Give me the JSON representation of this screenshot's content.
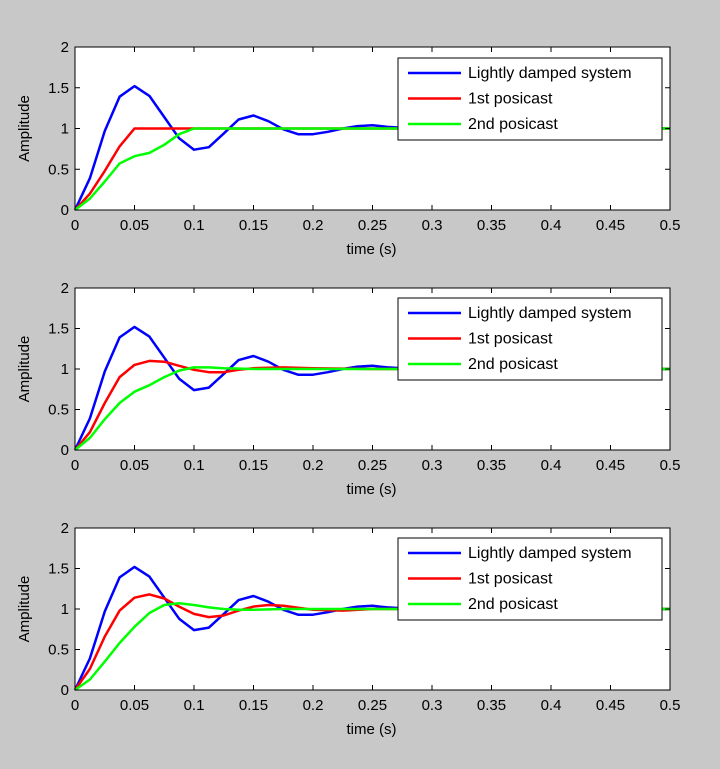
{
  "chart_data": [
    {
      "type": "line",
      "xlabel": "time (s)",
      "ylabel": "Amplitude",
      "xlim": [
        0,
        0.5
      ],
      "ylim": [
        0,
        2
      ],
      "xticks": [
        "0",
        "0.05",
        "0.1",
        "0.15",
        "0.2",
        "0.25",
        "0.3",
        "0.35",
        "0.4",
        "0.45",
        "0.5"
      ],
      "yticks": [
        "0",
        "0.5",
        "1",
        "1.5",
        "2"
      ],
      "grid": false,
      "legend": "top-right",
      "series": [
        {
          "name": "Lightly damped system",
          "color": "#0000ff",
          "x": [
            0,
            0.0125,
            0.025,
            0.0375,
            0.05,
            0.0625,
            0.075,
            0.0875,
            0.1,
            0.1125,
            0.125,
            0.1375,
            0.15,
            0.1625,
            0.175,
            0.1875,
            0.2,
            0.2125,
            0.225,
            0.2375,
            0.25,
            0.2625,
            0.275,
            0.3,
            0.35,
            0.4,
            0.45,
            0.5
          ],
          "y": [
            0,
            0.39,
            0.97,
            1.39,
            1.52,
            1.4,
            1.14,
            0.88,
            0.74,
            0.77,
            0.94,
            1.11,
            1.16,
            1.09,
            0.99,
            0.93,
            0.93,
            0.96,
            1.0,
            1.03,
            1.04,
            1.02,
            1.01,
            1.0,
            1.0,
            1.0,
            1.0,
            1.0
          ]
        },
        {
          "name": "1st posicast",
          "color": "#ff0000",
          "x": [
            0,
            0.0125,
            0.025,
            0.0375,
            0.05,
            0.0625,
            0.075,
            0.1,
            0.15,
            0.2,
            0.3,
            0.4,
            0.5
          ],
          "y": [
            0,
            0.2,
            0.48,
            0.78,
            1.0,
            1.0,
            1.0,
            1.0,
            1.0,
            1.0,
            1.0,
            1.0,
            1.0
          ]
        },
        {
          "name": "2nd posicast",
          "color": "#00ff00",
          "x": [
            0,
            0.0125,
            0.025,
            0.0375,
            0.05,
            0.0625,
            0.075,
            0.0875,
            0.1,
            0.15,
            0.2,
            0.3,
            0.4,
            0.5
          ],
          "y": [
            0,
            0.14,
            0.35,
            0.57,
            0.66,
            0.7,
            0.8,
            0.93,
            1.0,
            1.0,
            1.0,
            1.0,
            1.0,
            1.0
          ]
        }
      ]
    },
    {
      "type": "line",
      "xlabel": "time (s)",
      "ylabel": "Amplitude",
      "xlim": [
        0,
        0.5
      ],
      "ylim": [
        0,
        2
      ],
      "xticks": [
        "0",
        "0.05",
        "0.1",
        "0.15",
        "0.2",
        "0.25",
        "0.3",
        "0.35",
        "0.4",
        "0.45",
        "0.5"
      ],
      "yticks": [
        "0",
        "0.5",
        "1",
        "1.5",
        "2"
      ],
      "grid": false,
      "legend": "top-right",
      "series": [
        {
          "name": "Lightly damped system",
          "color": "#0000ff",
          "x": [
            0,
            0.0125,
            0.025,
            0.0375,
            0.05,
            0.0625,
            0.075,
            0.0875,
            0.1,
            0.1125,
            0.125,
            0.1375,
            0.15,
            0.1625,
            0.175,
            0.1875,
            0.2,
            0.2125,
            0.225,
            0.2375,
            0.25,
            0.2625,
            0.275,
            0.3,
            0.35,
            0.4,
            0.45,
            0.5
          ],
          "y": [
            0,
            0.39,
            0.97,
            1.39,
            1.52,
            1.4,
            1.14,
            0.88,
            0.74,
            0.77,
            0.94,
            1.11,
            1.16,
            1.09,
            0.99,
            0.93,
            0.93,
            0.96,
            1.0,
            1.03,
            1.04,
            1.02,
            1.01,
            1.0,
            1.0,
            1.0,
            1.0,
            1.0
          ]
        },
        {
          "name": "1st posicast",
          "color": "#ff0000",
          "x": [
            0,
            0.0125,
            0.025,
            0.0375,
            0.05,
            0.0625,
            0.075,
            0.0875,
            0.1,
            0.1125,
            0.125,
            0.1375,
            0.15,
            0.175,
            0.2,
            0.25,
            0.3,
            0.4,
            0.5
          ],
          "y": [
            0,
            0.22,
            0.58,
            0.9,
            1.05,
            1.1,
            1.09,
            1.04,
            0.99,
            0.96,
            0.96,
            0.99,
            1.01,
            1.02,
            1.01,
            1.0,
            1.0,
            1.0,
            1.0
          ]
        },
        {
          "name": "2nd posicast",
          "color": "#00ff00",
          "x": [
            0,
            0.0125,
            0.025,
            0.0375,
            0.05,
            0.0625,
            0.075,
            0.0875,
            0.1,
            0.1125,
            0.125,
            0.15,
            0.2,
            0.3,
            0.4,
            0.5
          ],
          "y": [
            0,
            0.15,
            0.38,
            0.58,
            0.72,
            0.8,
            0.9,
            0.98,
            1.02,
            1.02,
            1.01,
            1.0,
            1.0,
            1.0,
            1.0,
            1.0
          ]
        }
      ]
    },
    {
      "type": "line",
      "xlabel": "time (s)",
      "ylabel": "Amplitude",
      "xlim": [
        0,
        0.5
      ],
      "ylim": [
        0,
        2
      ],
      "xticks": [
        "0",
        "0.05",
        "0.1",
        "0.15",
        "0.2",
        "0.25",
        "0.3",
        "0.35",
        "0.4",
        "0.45",
        "0.5"
      ],
      "yticks": [
        "0",
        "0.5",
        "1",
        "1.5",
        "2"
      ],
      "grid": false,
      "legend": "top-right",
      "series": [
        {
          "name": "Lightly damped system",
          "color": "#0000ff",
          "x": [
            0,
            0.0125,
            0.025,
            0.0375,
            0.05,
            0.0625,
            0.075,
            0.0875,
            0.1,
            0.1125,
            0.125,
            0.1375,
            0.15,
            0.1625,
            0.175,
            0.1875,
            0.2,
            0.2125,
            0.225,
            0.2375,
            0.25,
            0.2625,
            0.275,
            0.3,
            0.35,
            0.4,
            0.45,
            0.5
          ],
          "y": [
            0,
            0.39,
            0.97,
            1.39,
            1.52,
            1.4,
            1.14,
            0.88,
            0.74,
            0.77,
            0.94,
            1.11,
            1.16,
            1.09,
            0.99,
            0.93,
            0.93,
            0.96,
            1.0,
            1.03,
            1.04,
            1.02,
            1.01,
            1.0,
            1.0,
            1.0,
            1.0,
            1.0
          ]
        },
        {
          "name": "1st posicast",
          "color": "#ff0000",
          "x": [
            0,
            0.0125,
            0.025,
            0.0375,
            0.05,
            0.0625,
            0.075,
            0.0875,
            0.1,
            0.1125,
            0.125,
            0.1375,
            0.15,
            0.1625,
            0.175,
            0.2,
            0.225,
            0.25,
            0.3,
            0.4,
            0.5
          ],
          "y": [
            0,
            0.26,
            0.66,
            0.98,
            1.14,
            1.18,
            1.13,
            1.03,
            0.94,
            0.9,
            0.92,
            0.98,
            1.03,
            1.05,
            1.04,
            0.99,
            0.98,
            1.0,
            1.0,
            1.0,
            1.0
          ]
        },
        {
          "name": "2nd posicast",
          "color": "#00ff00",
          "x": [
            0,
            0.0125,
            0.025,
            0.0375,
            0.05,
            0.0625,
            0.075,
            0.0875,
            0.1,
            0.1125,
            0.125,
            0.1375,
            0.15,
            0.175,
            0.2,
            0.25,
            0.3,
            0.4,
            0.5
          ],
          "y": [
            0,
            0.13,
            0.35,
            0.58,
            0.78,
            0.95,
            1.05,
            1.07,
            1.05,
            1.02,
            1.0,
            0.99,
            0.99,
            1.0,
            1.0,
            1.0,
            1.0,
            1.0,
            1.0
          ]
        }
      ]
    }
  ]
}
